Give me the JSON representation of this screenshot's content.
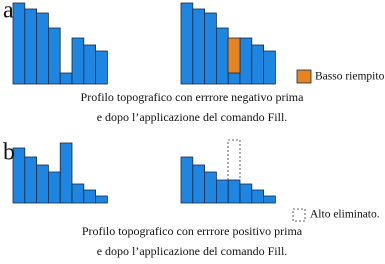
{
  "panel_a": {
    "label": "a",
    "legend": "Basso riempito.",
    "caption": [
      "Profilo topografico con errrore negativo prima",
      "e dopo l’applicazione del comando Fill."
    ]
  },
  "panel_b": {
    "label": "b",
    "legend": "Alto eliminato.",
    "caption": [
      "Profilo topografico con errrore positivo prima",
      "e dopo l’applicazione del comando Fill."
    ]
  }
}
